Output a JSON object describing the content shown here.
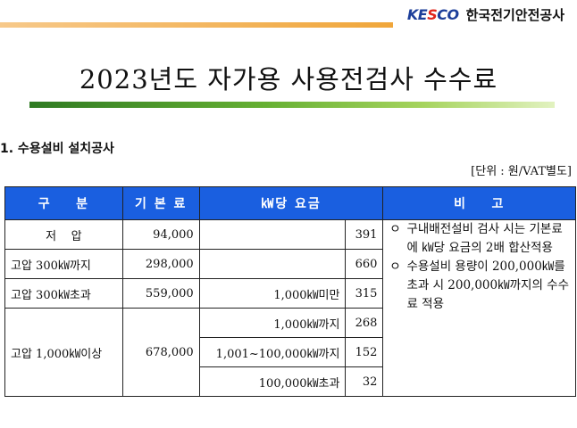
{
  "header": {
    "logo": {
      "prefix": "KE",
      "accent": "S",
      "suffix": "CO"
    },
    "org": "한국전기안전공사"
  },
  "title": "2023년도 자가용 사용전검사 수수료",
  "section": "1. 수용설비 설치공사",
  "unit": "[단위 : 원/VAT별도]",
  "table": {
    "headers": {
      "category": "구    분",
      "base_fee": "기 본 료",
      "per_kw": "㎾당 요금",
      "remarks": "비    고"
    },
    "rows": [
      {
        "category": "저    압",
        "base_fee": "94,000",
        "range": "",
        "rate": "391"
      },
      {
        "category": "고압 300㎾까지",
        "base_fee": "298,000",
        "range": "",
        "rate": "660"
      },
      {
        "category": "고압 300㎾초과",
        "base_fee": "559,000",
        "range": "1,000㎾미만",
        "rate": "315"
      },
      {
        "category": "고압 1,000㎾이상",
        "base_fee": "678,000",
        "subrows": [
          {
            "range": "1,000㎾까지",
            "rate": "268"
          },
          {
            "range": "1,001~100,000㎾까지",
            "rate": "152"
          },
          {
            "range": "100,000㎾초과",
            "rate": "32"
          }
        ]
      }
    ],
    "notes": [
      {
        "bullet": "ㅇ",
        "text": "구내배전설비 검사 시는 기본료에 ㎾당 요금의 2배 합산적용"
      },
      {
        "bullet": "ㅇ",
        "text": "수용설비 용량이 200,000㎾를 초과 시 200,000㎾까지의 수수료 적용"
      }
    ]
  }
}
